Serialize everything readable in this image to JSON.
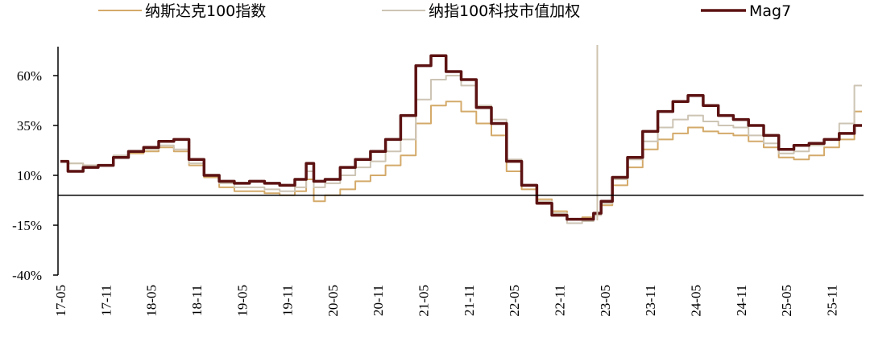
{
  "chart_data": {
    "type": "line",
    "title": "",
    "xlabel": "",
    "ylabel": "",
    "ylim": [
      -40,
      75
    ],
    "y_ticks": [
      {
        "value": 60,
        "label": "60%"
      },
      {
        "value": 35,
        "label": "35%"
      },
      {
        "value": 10,
        "label": "10%"
      },
      {
        "value": -15,
        "label": "-15%"
      },
      {
        "value": -40,
        "label": "-40%"
      }
    ],
    "x_ticks": [
      "17-05",
      "17-11",
      "18-05",
      "18-11",
      "19-05",
      "19-11",
      "20-05",
      "20-11",
      "21-05",
      "21-11",
      "22-05",
      "22-11",
      "23-05",
      "23-11",
      "24-05",
      "24-11",
      "25-05",
      "25-11"
    ],
    "x_range": [
      "2017-05",
      "2026-03"
    ],
    "reference_line": {
      "type": "vertical",
      "at": "2023-04"
    },
    "zero_line": 0,
    "legend_position": "top",
    "series": [
      {
        "name": "纳斯达克100指数",
        "color": "#d4aa6a",
        "width": 2,
        "x": [
          "2017-05",
          "2017-07",
          "2017-09",
          "2017-11",
          "2018-01",
          "2018-03",
          "2018-05",
          "2018-07",
          "2018-09",
          "2018-11",
          "2019-01",
          "2019-03",
          "2019-05",
          "2019-07",
          "2019-09",
          "2019-11",
          "2020-01",
          "2020-02",
          "2020-03",
          "2020-05",
          "2020-07",
          "2020-09",
          "2020-11",
          "2021-01",
          "2021-03",
          "2021-05",
          "2021-07",
          "2021-09",
          "2021-11",
          "2022-01",
          "2022-03",
          "2022-05",
          "2022-07",
          "2022-09",
          "2022-11",
          "2023-01",
          "2023-03",
          "2023-04",
          "2023-05",
          "2023-07",
          "2023-09",
          "2023-11",
          "2024-01",
          "2024-03",
          "2024-05",
          "2024-07",
          "2024-09",
          "2024-11",
          "2025-01",
          "2025-03",
          "2025-05",
          "2025-07",
          "2025-09",
          "2025-11",
          "2026-01",
          "2026-03"
        ],
        "values": [
          17,
          16,
          15,
          15,
          19,
          21,
          22,
          24,
          22,
          15,
          9,
          4,
          2,
          2,
          1,
          0,
          2,
          8,
          -3,
          0,
          3,
          7,
          10,
          15,
          20,
          36,
          45,
          47,
          42,
          36,
          30,
          12,
          3,
          -2,
          -8,
          -12,
          -11,
          -9,
          -5,
          5,
          14,
          23,
          28,
          31,
          34,
          32,
          31,
          30,
          27,
          24,
          19,
          18,
          20,
          24,
          28,
          42
        ]
      },
      {
        "name": "纳指100科技市值加权",
        "color": "#cdc4b4",
        "width": 2,
        "x": [
          "2017-05",
          "2017-07",
          "2017-09",
          "2017-11",
          "2018-01",
          "2018-03",
          "2018-05",
          "2018-07",
          "2018-09",
          "2018-11",
          "2019-01",
          "2019-03",
          "2019-05",
          "2019-07",
          "2019-09",
          "2019-11",
          "2020-01",
          "2020-02",
          "2020-03",
          "2020-05",
          "2020-07",
          "2020-09",
          "2020-11",
          "2021-01",
          "2021-03",
          "2021-05",
          "2021-07",
          "2021-09",
          "2021-11",
          "2022-01",
          "2022-03",
          "2022-05",
          "2022-07",
          "2022-09",
          "2022-11",
          "2023-01",
          "2023-03",
          "2023-04",
          "2023-05",
          "2023-07",
          "2023-09",
          "2023-11",
          "2024-01",
          "2024-03",
          "2024-05",
          "2024-07",
          "2024-09",
          "2024-11",
          "2025-01",
          "2025-03",
          "2025-05",
          "2025-07",
          "2025-09",
          "2025-11",
          "2026-01",
          "2026-03"
        ],
        "values": [
          17,
          16,
          15,
          15,
          20,
          22,
          23,
          25,
          23,
          16,
          10,
          6,
          4,
          4,
          3,
          2,
          4,
          12,
          4,
          6,
          10,
          14,
          17,
          22,
          28,
          48,
          58,
          60,
          55,
          45,
          38,
          18,
          5,
          -3,
          -9,
          -14,
          -13,
          -10,
          -4,
          8,
          18,
          27,
          34,
          38,
          40,
          37,
          35,
          34,
          30,
          26,
          21,
          22,
          25,
          28,
          36,
          55
        ]
      },
      {
        "name": "Mag7",
        "color": "#5c1212",
        "width": 3.5,
        "x": [
          "2017-05",
          "2017-07",
          "2017-09",
          "2017-11",
          "2018-01",
          "2018-03",
          "2018-05",
          "2018-07",
          "2018-09",
          "2018-11",
          "2019-01",
          "2019-03",
          "2019-05",
          "2019-07",
          "2019-09",
          "2019-11",
          "2020-01",
          "2020-02",
          "2020-03",
          "2020-05",
          "2020-07",
          "2020-09",
          "2020-11",
          "2021-01",
          "2021-03",
          "2021-05",
          "2021-07",
          "2021-09",
          "2021-11",
          "2022-01",
          "2022-03",
          "2022-05",
          "2022-07",
          "2022-09",
          "2022-11",
          "2023-01",
          "2023-03",
          "2023-04",
          "2023-05",
          "2023-07",
          "2023-09",
          "2023-11",
          "2024-01",
          "2024-03",
          "2024-05",
          "2024-07",
          "2024-09",
          "2024-11",
          "2025-01",
          "2025-03",
          "2025-05",
          "2025-07",
          "2025-09",
          "2025-11",
          "2026-01",
          "2026-03"
        ],
        "values": [
          17,
          12,
          14,
          15,
          19,
          22,
          24,
          27,
          28,
          18,
          10,
          7,
          6,
          7,
          6,
          5,
          8,
          16,
          7,
          8,
          14,
          18,
          22,
          28,
          40,
          65,
          70,
          62,
          58,
          44,
          36,
          17,
          5,
          -4,
          -10,
          -12,
          -12,
          -9,
          -3,
          9,
          19,
          32,
          42,
          47,
          50,
          45,
          40,
          38,
          35,
          30,
          23,
          25,
          26,
          28,
          31,
          35
        ]
      }
    ]
  }
}
